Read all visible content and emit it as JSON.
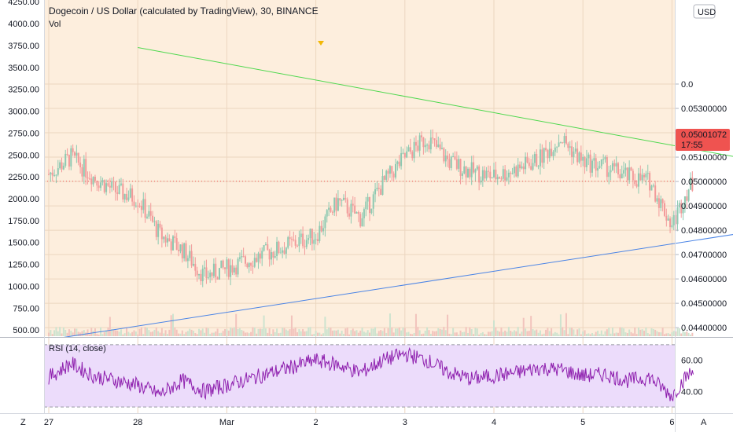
{
  "header": {
    "title": "Dogecoin / US Dollar (calculated by TradingView), 30, BINANCE",
    "vol_label": "Vol"
  },
  "currency_button": "USD",
  "rsi": {
    "label": "RSI (14, close)",
    "ticks": [
      "60.00",
      "40.00"
    ]
  },
  "price_tag": {
    "value": "0.05001072",
    "countdown": "17:55"
  },
  "bottom_bar": {
    "left_button": "Z",
    "right_button": "A"
  },
  "colors": {
    "background": "#fdeedd",
    "up": "#8cc9b1",
    "down": "#f29a9a",
    "resistance_line": "#4fd84f",
    "support_line": "#4a84e6",
    "rsi_band": "#ecdcfb",
    "rsi_line": "#8e1fae",
    "price_tag": "#ef5350"
  },
  "chart_data": {
    "type": "candlestick",
    "title": "Dogecoin / US Dollar (calculated by TradingView), 30, BINANCE",
    "x_ticks": [
      "27",
      "28",
      "Mar",
      "2",
      "3",
      "4",
      "5",
      "6"
    ],
    "left_axis_ticks": [
      4250,
      4000,
      3750,
      3500,
      3250,
      3000,
      2750,
      2500,
      2250,
      2000,
      1750,
      1500,
      1250,
      1000,
      750,
      500
    ],
    "right_axis_ticks": [
      0.054,
      0.053,
      0.052,
      0.051,
      0.05,
      0.049,
      0.048,
      0.047,
      0.046,
      0.045,
      0.044
    ],
    "right_axis_labels": [
      "0.0",
      "0.05300000",
      "0.05200000",
      "0.05100000",
      "0.05000000",
      "0.04900000",
      "0.04800000",
      "0.04700000",
      "0.04600000",
      "0.04500000",
      "0.04400000"
    ],
    "ylim_right": [
      0.04365,
      0.05745
    ],
    "ylim_left": [
      430,
      4270
    ],
    "current_price": 0.05001072,
    "trend_lines": [
      {
        "name": "resistance",
        "from": [
          "2/28 00:00",
          0.0555
        ],
        "to": [
          "3/6 00:00",
          0.05082
        ]
      },
      {
        "name": "support",
        "from": [
          "2/27 04:00",
          0.0436
        ],
        "to": [
          "3/6 00:00",
          0.048
        ]
      }
    ],
    "price_path": [
      [
        "2/27 00:00",
        0.0503
      ],
      [
        "2/27 06:00",
        0.051
      ],
      [
        "2/27 12:00",
        0.0502
      ],
      [
        "2/27 18:00",
        0.0496
      ],
      [
        "2/28 00:00",
        0.0493
      ],
      [
        "2/28 06:00",
        0.0478
      ],
      [
        "2/28 12:00",
        0.0472
      ],
      [
        "2/28 18:00",
        0.0461
      ],
      [
        "3/1 00:00",
        0.0478
      ],
      [
        "3/1 06:00",
        0.0492
      ],
      [
        "3/1 12:00",
        0.0485
      ],
      [
        "3/1 18:00",
        0.0499
      ],
      [
        "3/2 00:00",
        0.051
      ],
      [
        "3/2 06:00",
        0.0518
      ],
      [
        "3/2 12:00",
        0.0508
      ],
      [
        "3/2 18:00",
        0.0504
      ],
      [
        "3/3 00:00",
        0.0502
      ],
      [
        "3/3 06:00",
        0.0505
      ],
      [
        "3/3 12:00",
        0.0509
      ],
      [
        "3/3 18:00",
        0.0518
      ],
      [
        "3/4 00:00",
        0.0508
      ],
      [
        "3/4 06:00",
        0.0506
      ],
      [
        "3/4 12:00",
        0.0502
      ],
      [
        "3/4 18:00",
        0.05
      ],
      [
        "3/5 00:00",
        0.0482
      ],
      [
        "3/5 04:00",
        0.0496
      ],
      [
        "3/5 06:00",
        0.05
      ]
    ],
    "rsi_ylim": [
      26,
      74
    ],
    "rsi_band": [
      30,
      70
    ],
    "rsi_path": [
      [
        "2/27 00:00",
        49
      ],
      [
        "2/27 06:00",
        58
      ],
      [
        "2/27 12:00",
        50
      ],
      [
        "2/27 18:00",
        47
      ],
      [
        "2/28 00:00",
        44
      ],
      [
        "2/28 06:00",
        38
      ],
      [
        "2/28 12:00",
        47
      ],
      [
        "2/28 18:00",
        40
      ],
      [
        "3/1 00:00",
        60
      ],
      [
        "3/1 06:00",
        57
      ],
      [
        "3/1 12:00",
        52
      ],
      [
        "3/1 18:00",
        60
      ],
      [
        "3/2 00:00",
        64
      ],
      [
        "3/2 06:00",
        60
      ],
      [
        "3/2 12:00",
        52
      ],
      [
        "3/2 18:00",
        48
      ],
      [
        "3/3 00:00",
        50
      ],
      [
        "3/3 06:00",
        52
      ],
      [
        "3/3 12:00",
        55
      ],
      [
        "3/3 18:00",
        54
      ],
      [
        "3/4 00:00",
        50
      ],
      [
        "3/4 06:00",
        51
      ],
      [
        "3/4 12:00",
        47
      ],
      [
        "3/4 18:00",
        49
      ],
      [
        "3/5 00:00",
        37
      ],
      [
        "3/5 04:00",
        50
      ],
      [
        "3/5 06:00",
        53
      ]
    ]
  }
}
